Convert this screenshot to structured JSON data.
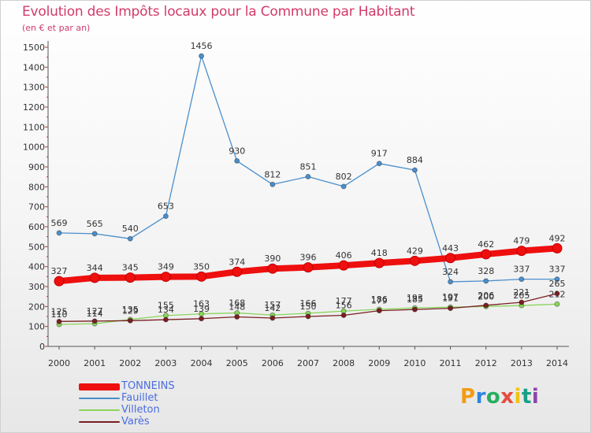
{
  "header": {
    "title": "Evolution des Impôts locaux pour la Commune par Habitant",
    "subtitle": "(en € et par an)"
  },
  "chart_data": {
    "type": "line",
    "title": "Evolution des Impôts locaux pour la Commune par Habitant",
    "subtitle": "(en € et par an)",
    "x": [
      2000,
      2001,
      2002,
      2003,
      2004,
      2005,
      2006,
      2007,
      2008,
      2009,
      2010,
      2011,
      2012,
      2013,
      2014
    ],
    "ylim": [
      0,
      1500
    ],
    "yticks": [
      0,
      100,
      200,
      300,
      400,
      500,
      600,
      700,
      800,
      900,
      1000,
      1100,
      1200,
      1300,
      1400,
      1500
    ],
    "grid": false,
    "legend_position": "bottom-left",
    "series": [
      {
        "name": "Fauillet",
        "color": "#4a8fcc",
        "values": [
          569,
          565,
          540,
          653,
          1456,
          930,
          812,
          851,
          802,
          917,
          884,
          324,
          328,
          337,
          337
        ]
      },
      {
        "name": "Villeton",
        "color": "#8ad65a",
        "values": [
          110,
          114,
          135,
          155,
          163,
          168,
          157,
          166,
          177,
          186,
          193,
          197,
          200,
          205,
          212
        ]
      },
      {
        "name": "Varès",
        "color": "#7a1e22",
        "values": [
          125,
          127,
          129,
          134,
          139,
          148,
          142,
          150,
          156,
          179,
          185,
          191,
          206,
          221,
          265
        ]
      },
      {
        "name": "TONNEINS",
        "color": "#ee0f0f",
        "values": [
          327,
          344,
          345,
          349,
          350,
          374,
          390,
          396,
          406,
          418,
          429,
          443,
          462,
          479,
          492
        ]
      }
    ]
  },
  "legend": {
    "items": [
      {
        "label": "TONNEINS",
        "color": "#ee0f0f"
      },
      {
        "label": "Fauillet",
        "color": "#4a8fcc"
      },
      {
        "label": "Villeton",
        "color": "#8ad65a"
      },
      {
        "label": "Varès",
        "color": "#7a1e22"
      }
    ]
  },
  "branding": {
    "logo_text": "Proxiti",
    "logo_colors": [
      "#f39c12",
      "#2e86de",
      "#27ae60",
      "#e74c3c",
      "#f1c40f",
      "#16a085",
      "#8e44ad"
    ]
  }
}
